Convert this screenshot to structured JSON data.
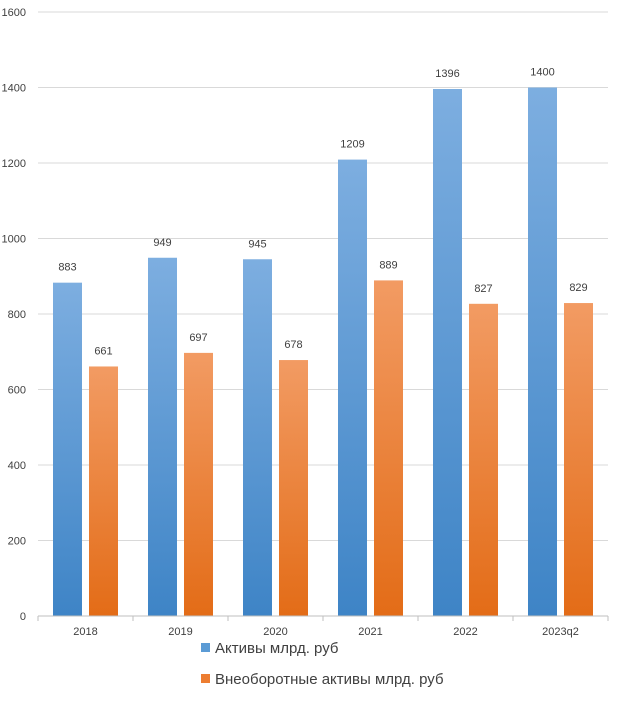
{
  "chart_data": {
    "type": "bar",
    "categories": [
      "2018",
      "2019",
      "2020",
      "2021",
      "2022",
      "2023q2"
    ],
    "series": [
      {
        "name": "Активы млрд. руб",
        "values": [
          883,
          949,
          945,
          1209,
          1396,
          1400
        ],
        "color": "#5B9BD5"
      },
      {
        "name": "Внеоборотные активы млрд. руб",
        "values": [
          661,
          697,
          678,
          889,
          827,
          829
        ],
        "color": "#ED7D31"
      }
    ],
    "ylim": [
      0,
      1600
    ],
    "yticks": [
      0,
      200,
      400,
      600,
      800,
      1000,
      1200,
      1400,
      1600
    ],
    "grid": true,
    "data_labels": true,
    "legend": "bottom",
    "title": "",
    "xlabel": "",
    "ylabel": ""
  }
}
